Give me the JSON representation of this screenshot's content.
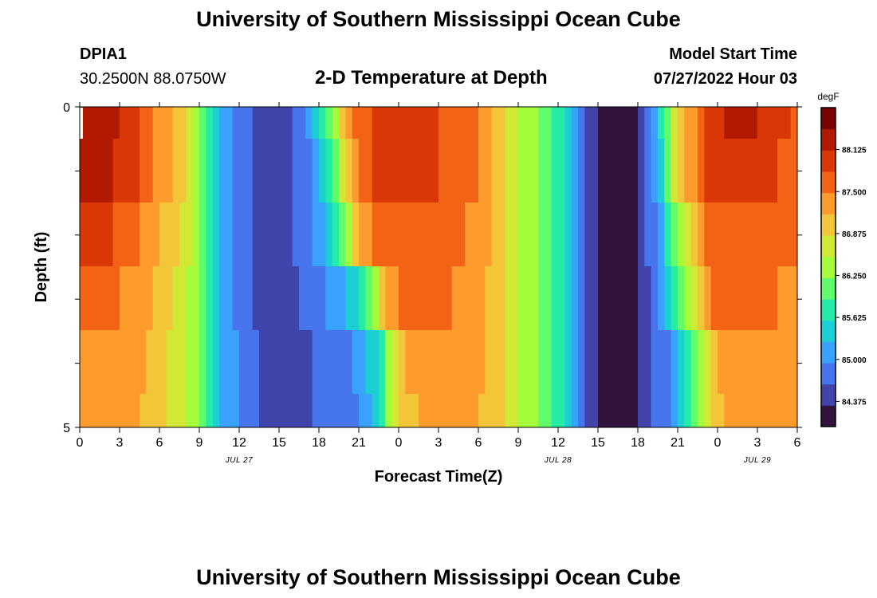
{
  "header": {
    "title": "University of Southern Mississippi Ocean Cube",
    "station_id": "DPIA1",
    "station_coords": "30.2500N  88.0750W",
    "subtitle": "2-D Temperature at Depth",
    "model_start_label": "Model Start Time",
    "model_start_value": "07/27/2022 Hour 03"
  },
  "footer": {
    "title": "University of Southern Mississippi Ocean Cube"
  },
  "chart_data": {
    "type": "heatmap",
    "title": "2-D Temperature at Depth",
    "xlabel": "Forecast Time(Z)",
    "ylabel": "Depth (ft)",
    "x_start_hour": 0,
    "x_end_hour": 54,
    "x_tick_labels": [
      "0",
      "3",
      "6",
      "9",
      "12",
      "15",
      "18",
      "21",
      "0",
      "3",
      "6",
      "9",
      "12",
      "15",
      "18",
      "21",
      "0",
      "3",
      "6"
    ],
    "date_labels": [
      {
        "label": "JUL 27",
        "hour": 12
      },
      {
        "label": "JUL 28",
        "hour": 36
      },
      {
        "label": "JUL 29",
        "hour": 51
      }
    ],
    "y_tick_labels": [
      "0",
      "5"
    ],
    "ylim": [
      0,
      5
    ],
    "depth_levels": [
      0.5,
      1.5,
      2.5,
      3.5,
      4.5
    ],
    "depth_boundaries": [
      0,
      1,
      2,
      3,
      4,
      5
    ],
    "colorbar": {
      "unit": "degF",
      "tick_labels": [
        "84.375",
        "85.000",
        "85.625",
        "86.250",
        "86.875",
        "87.500",
        "88.125"
      ],
      "range": [
        84.0,
        88.75
      ],
      "colors": [
        "#30123b",
        "#4145ab",
        "#4675ed",
        "#39a2fc",
        "#1bcfd4",
        "#24eca6",
        "#61fc6c",
        "#a4fc3b",
        "#d1e834",
        "#f3c63a",
        "#fe9b2d",
        "#f36315",
        "#d93806",
        "#b11901",
        "#7a0402"
      ]
    },
    "series": [
      {
        "name": "",
        "depth": 0.0,
        "hours": [
          0,
          1.5,
          4,
          6,
          8,
          9.5,
          11,
          13,
          15,
          17,
          18.5,
          19.5,
          20,
          22,
          24,
          27,
          30,
          32,
          34,
          36,
          37,
          38,
          39,
          42,
          43,
          44,
          45,
          47,
          48,
          50,
          52,
          54
        ],
        "values": [
          88.4,
          88.4,
          87.9,
          87.4,
          86.8,
          86.0,
          85.0,
          84.6,
          84.5,
          84.8,
          85.8,
          86.6,
          87.3,
          87.8,
          87.9,
          87.8,
          87.5,
          86.9,
          86.3,
          85.8,
          85.2,
          84.6,
          84.3,
          84.3,
          85.0,
          85.8,
          86.8,
          87.8,
          88.1,
          88.2,
          88.0,
          87.7
        ]
      },
      {
        "name": "",
        "depth": 1.0,
        "hours": [
          0,
          1.5,
          4,
          6,
          8,
          9.5,
          11,
          13,
          15,
          17,
          18.5,
          19.5,
          20.5,
          22,
          24,
          27,
          30,
          32,
          34,
          36,
          37,
          38,
          39,
          42,
          43,
          44,
          45,
          47,
          48,
          50,
          52,
          54
        ],
        "values": [
          88.3,
          88.3,
          87.9,
          87.4,
          86.8,
          86.0,
          85.0,
          84.6,
          84.5,
          84.8,
          85.6,
          86.4,
          87.4,
          87.8,
          87.9,
          87.8,
          87.5,
          86.9,
          86.3,
          85.8,
          85.2,
          84.6,
          84.3,
          84.3,
          84.9,
          85.8,
          86.8,
          87.8,
          88.0,
          88.0,
          87.9,
          87.6
        ]
      },
      {
        "name": "",
        "depth": 2.0,
        "hours": [
          0,
          1.5,
          4,
          6,
          8,
          9.5,
          11,
          13,
          15,
          17,
          19,
          20,
          21,
          22.5,
          24,
          27,
          30,
          32,
          34,
          36,
          37,
          38,
          39,
          42,
          43.5,
          44.5,
          45.5,
          47,
          48,
          50,
          52,
          54
        ],
        "values": [
          87.9,
          87.9,
          87.6,
          87.2,
          86.7,
          86.0,
          85.0,
          84.6,
          84.5,
          84.8,
          85.4,
          86.2,
          87.1,
          87.7,
          87.8,
          87.7,
          87.4,
          86.9,
          86.3,
          85.8,
          85.2,
          84.6,
          84.3,
          84.3,
          85.0,
          85.8,
          86.7,
          87.6,
          87.8,
          87.8,
          87.7,
          87.5
        ]
      },
      {
        "name": "",
        "depth": 3.0,
        "hours": [
          0,
          1.5,
          4,
          6,
          8,
          9.5,
          11,
          13,
          15,
          17,
          19,
          21,
          22,
          23,
          24,
          27,
          30,
          32,
          34,
          36,
          37,
          38,
          39,
          42,
          44,
          45,
          46,
          47,
          48,
          50,
          52,
          54
        ],
        "values": [
          87.6,
          87.6,
          87.4,
          87.1,
          86.6,
          86.0,
          85.0,
          84.6,
          84.5,
          84.7,
          85.0,
          85.5,
          86.3,
          87.2,
          87.5,
          87.6,
          87.3,
          86.9,
          86.3,
          85.8,
          85.2,
          84.6,
          84.3,
          84.3,
          85.1,
          85.9,
          86.7,
          87.3,
          87.6,
          87.6,
          87.5,
          87.4
        ]
      },
      {
        "name": "",
        "depth": 4.0,
        "hours": [
          0,
          1.5,
          4,
          6,
          8,
          9.5,
          11,
          13,
          15,
          17,
          19,
          21,
          22.5,
          23.5,
          24.5,
          27,
          30,
          32,
          34,
          36,
          37,
          38,
          39,
          42,
          44.5,
          46,
          47,
          48,
          49,
          50,
          52,
          54
        ],
        "values": [
          87.4,
          87.4,
          87.3,
          87.0,
          86.6,
          86.0,
          85.1,
          84.7,
          84.5,
          84.6,
          84.8,
          85.0,
          85.6,
          86.6,
          87.2,
          87.4,
          87.3,
          86.9,
          86.3,
          85.8,
          85.2,
          84.6,
          84.3,
          84.3,
          85.0,
          85.8,
          86.6,
          87.1,
          87.4,
          87.4,
          87.4,
          87.3
        ]
      },
      {
        "name": "",
        "depth": 5.0,
        "hours": [
          0,
          1.5,
          4,
          6,
          8,
          9.5,
          11,
          13,
          15,
          17,
          19,
          21,
          22.5,
          23.5,
          24.5,
          27,
          30,
          32,
          34,
          36,
          37,
          38,
          39,
          42,
          44.5,
          46,
          47,
          48,
          49,
          50,
          52,
          54
        ],
        "values": [
          87.3,
          87.3,
          87.2,
          87.0,
          86.6,
          86.0,
          85.1,
          84.7,
          84.5,
          84.6,
          84.7,
          84.9,
          85.4,
          86.5,
          87.1,
          87.3,
          87.2,
          86.9,
          86.3,
          85.8,
          85.2,
          84.6,
          84.3,
          84.3,
          85.0,
          85.8,
          86.6,
          87.0,
          87.3,
          87.3,
          87.3,
          87.2
        ]
      }
    ]
  }
}
